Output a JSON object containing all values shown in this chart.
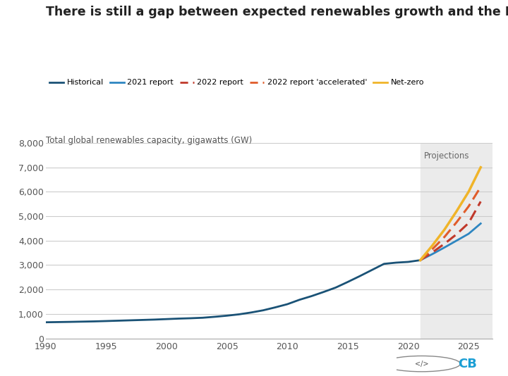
{
  "title": "There is still a gap between expected renewables growth and the IEA net-zero trajectory",
  "subtitle": "Total global renewables capacity, gigawatts (GW)",
  "title_fontsize": 12.5,
  "subtitle_fontsize": 8.5,
  "bg_color": "#ffffff",
  "plot_bg_color": "#ffffff",
  "projection_bg_color": "#ebebeb",
  "grid_color": "#cccccc",
  "projection_start_year": 2021,
  "projection_label": "Projections",
  "xlim": [
    1990,
    2027
  ],
  "ylim": [
    0,
    8000
  ],
  "yticks": [
    0,
    1000,
    2000,
    3000,
    4000,
    5000,
    6000,
    7000,
    8000
  ],
  "xticks": [
    1990,
    1995,
    2000,
    2005,
    2010,
    2015,
    2020,
    2025
  ],
  "historical": {
    "years": [
      1990,
      1991,
      1992,
      1993,
      1994,
      1995,
      1996,
      1997,
      1998,
      1999,
      2000,
      2001,
      2002,
      2003,
      2004,
      2005,
      2006,
      2007,
      2008,
      2009,
      2010,
      2011,
      2012,
      2013,
      2014,
      2015,
      2016,
      2017,
      2018,
      2019,
      2020,
      2021
    ],
    "values": [
      660,
      668,
      676,
      686,
      696,
      710,
      725,
      740,
      755,
      770,
      790,
      810,
      825,
      845,
      885,
      930,
      985,
      1060,
      1150,
      1270,
      1400,
      1580,
      1730,
      1900,
      2080,
      2310,
      2550,
      2800,
      3050,
      3100,
      3130,
      3200
    ],
    "color": "#1a5276",
    "linewidth": 2.0,
    "label": "Historical"
  },
  "report_2021": {
    "years": [
      2021,
      2022,
      2023,
      2024,
      2025,
      2026
    ],
    "values": [
      3200,
      3450,
      3720,
      4000,
      4280,
      4700
    ],
    "color": "#2e86c1",
    "linewidth": 2.0,
    "label": "2021 report"
  },
  "report_2022": {
    "years": [
      2021,
      2022,
      2023,
      2024,
      2025,
      2026
    ],
    "values": [
      3200,
      3520,
      3870,
      4260,
      4720,
      5600
    ],
    "color": "#c0392b",
    "linewidth": 2.2,
    "linestyle": "--",
    "label": "2022 report"
  },
  "report_2022_accelerated": {
    "years": [
      2021,
      2022,
      2023,
      2024,
      2025,
      2026
    ],
    "values": [
      3200,
      3650,
      4150,
      4750,
      5400,
      6200
    ],
    "color": "#e05c2a",
    "linewidth": 2.2,
    "linestyle": "--",
    "label": "2022 report 'accelerated'"
  },
  "net_zero": {
    "years": [
      2021,
      2022,
      2023,
      2024,
      2025,
      2026
    ],
    "values": [
      3200,
      3800,
      4450,
      5200,
      6000,
      7000
    ],
    "color": "#f0b429",
    "linewidth": 2.5,
    "label": "Net-zero"
  },
  "legend_items": [
    "Historical",
    "2021 report",
    "2022 report",
    "2022 report 'accelerated'",
    "Net-zero"
  ],
  "legend_colors": [
    "#1a5276",
    "#2e86c1",
    "#c0392b",
    "#e05c2a",
    "#f0b429"
  ],
  "legend_linestyles": [
    "-",
    "-",
    "--",
    "--",
    "-"
  ]
}
